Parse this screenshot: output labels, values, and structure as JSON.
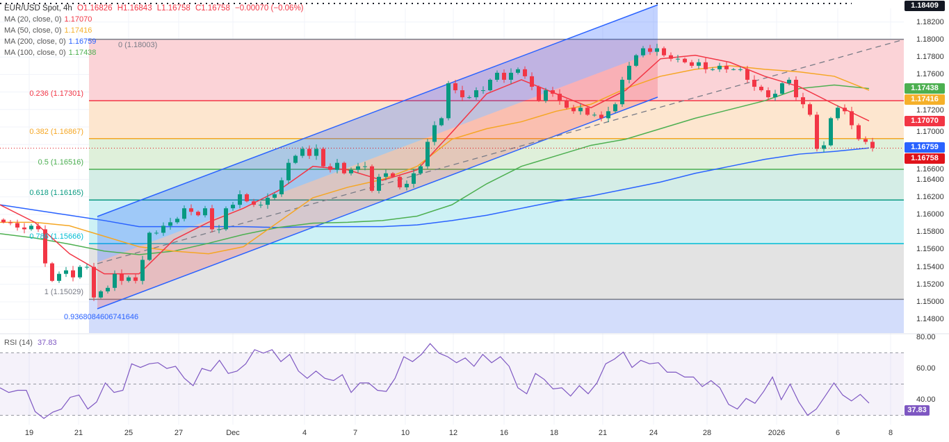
{
  "header": {
    "symbol": "EUR/USD Spot, 4h",
    "open": "O1.16826",
    "high": "H1.16843",
    "low": "L1.16758",
    "close": "C1.16758",
    "change": "−0.00070 (−0.06%)"
  },
  "indicators": [
    {
      "label": "MA (20, close, 0)",
      "value": "1.17070",
      "color": "#f23645"
    },
    {
      "label": "MA (50, close, 0)",
      "value": "1.17416",
      "color": "#f5b02a"
    },
    {
      "label": "MA (200, close, 0)",
      "value": "1.16759",
      "color": "#2962ff"
    },
    {
      "label": "MA (100, close, 0)",
      "value": "1.17438",
      "color": "#4caf50"
    }
  ],
  "rsi_legend": {
    "label": "RSI (14)",
    "value": "37.83"
  },
  "colors": {
    "up": "#089981",
    "down": "#f23645",
    "ma20": "#f23645",
    "ma50": "#f5a623",
    "ma100": "#4caf50",
    "ma200": "#2962ff",
    "rsi": "#7e57c2",
    "channel": "#2962ff"
  },
  "price_axis": {
    "ticks": [
      "1.18200",
      "1.18000",
      "1.17800",
      "1.17600",
      "1.17200",
      "1.17000",
      "1.16600",
      "1.16400",
      "1.16200",
      "1.16000",
      "1.15800",
      "1.15600",
      "1.15400",
      "1.15200",
      "1.15000",
      "1.14800"
    ]
  },
  "badges": [
    {
      "value": "1.18409",
      "color": "#131722",
      "name": "high-marker"
    },
    {
      "value": "1.17438",
      "color": "#4caf50",
      "name": "ma100"
    },
    {
      "value": "1.17416",
      "color": "#f5b02a",
      "name": "ma50"
    },
    {
      "value": "1.17070",
      "color": "#f23645",
      "name": "ma20"
    },
    {
      "value": "1.16759",
      "color": "#2962ff",
      "name": "ma200"
    },
    {
      "value": "1.16758",
      "color": "#e0131b",
      "name": "last-price"
    }
  ],
  "rsi_axis": {
    "ticks": [
      "80.00",
      "60.00",
      "40.00"
    ],
    "badge": "37.83"
  },
  "x_axis": {
    "ticks": [
      "19",
      "21",
      "25",
      "27",
      "Dec",
      "4",
      "7",
      "10",
      "12",
      "16",
      "18",
      "21",
      "24",
      "28",
      "2026",
      "6",
      "8"
    ]
  },
  "fib": [
    {
      "level": "0",
      "price": 1.18003,
      "label": "0 (1.18003)",
      "color": "#787b86",
      "fill": "#fbd3d7"
    },
    {
      "level": "0.236",
      "price": 1.17301,
      "label": "0.236 (1.17301)",
      "color": "#f23645",
      "fill": "#fde6cf"
    },
    {
      "level": "0.382",
      "price": 1.16867,
      "label": "0.382 (1.16867)",
      "color": "#f5a623",
      "fill": "#dff0da"
    },
    {
      "level": "0.5",
      "price": 1.16516,
      "label": "0.5 (1.16516)",
      "color": "#4caf50",
      "fill": "#d4ede6"
    },
    {
      "level": "0.618",
      "price": 1.16165,
      "label": "0.618 (1.16165)",
      "color": "#089981",
      "fill": "#cdf1f5"
    },
    {
      "level": "0.786",
      "price": 1.15666,
      "label": "0.786 (1.15666)",
      "color": "#00bcd4",
      "fill": "#e3e3e3"
    },
    {
      "level": "1",
      "price": 1.15029,
      "label": "1 (1.15029)",
      "color": "#787b86",
      "fill": "#d3ddfb"
    }
  ],
  "fib_extension_label": "0.9368084606741646",
  "chart_data": {
    "type": "candlestick",
    "title": "EUR/USD Spot, 4h",
    "ylim": [
      1.1475,
      1.1845
    ],
    "last_close": 1.16758,
    "period_high": 1.18409,
    "closes": [
      1.1591,
      1.159,
      1.1585,
      1.1583,
      1.1587,
      1.1583,
      1.1544,
      1.1524,
      1.1532,
      1.1536,
      1.1528,
      1.154,
      1.154,
      1.1505,
      1.1512,
      1.1516,
      1.1532,
      1.1524,
      1.1528,
      1.1524,
      1.1548,
      1.1579,
      1.1579,
      1.1587,
      1.1591,
      1.1595,
      1.1607,
      1.1603,
      1.1599,
      1.1607,
      1.1583,
      1.1583,
      1.1607,
      1.1611,
      1.1623,
      1.1615,
      1.1611,
      1.1611,
      1.1619,
      1.1623,
      1.1639,
      1.1659,
      1.1667,
      1.1675,
      1.1667,
      1.1675,
      1.1655,
      1.1651,
      1.1659,
      1.1647,
      1.1651,
      1.1655,
      1.1655,
      1.1627,
      1.1643,
      1.1647,
      1.1643,
      1.1631,
      1.1635,
      1.1647,
      1.1655,
      1.1683,
      1.1702,
      1.171,
      1.175,
      1.1742,
      1.1734,
      1.1734,
      1.1742,
      1.1742,
      1.1754,
      1.1762,
      1.1754,
      1.1762,
      1.1766,
      1.1758,
      1.1746,
      1.173,
      1.1742,
      1.1738,
      1.173,
      1.1722,
      1.1718,
      1.1722,
      1.1714,
      1.1714,
      1.171,
      1.1718,
      1.1726,
      1.1754,
      1.177,
      1.1782,
      1.179,
      1.1786,
      1.179,
      1.1782,
      1.1778,
      1.1778,
      1.1774,
      1.177,
      1.1774,
      1.1766,
      1.1766,
      1.177,
      1.1766,
      1.1766,
      1.1766,
      1.1754,
      1.1746,
      1.1742,
      1.1734,
      1.1738,
      1.175,
      1.1754,
      1.1734,
      1.1726,
      1.1714,
      1.1675,
      1.1679,
      1.171,
      1.1722,
      1.1718,
      1.1702,
      1.1686,
      1.1683,
      1.1676
    ],
    "ma20": [
      1.1611,
      1.1591,
      1.1555,
      1.1532,
      1.1532,
      1.1571,
      1.1591,
      1.1607,
      1.1627,
      1.1655,
      1.1651,
      1.1639,
      1.1651,
      1.1694,
      1.1738,
      1.1754,
      1.1738,
      1.1722,
      1.1742,
      1.1778,
      1.1782,
      1.1774,
      1.1758,
      1.1746,
      1.1726,
      1.1707
    ],
    "ma50": [
      1.1591,
      1.1591,
      1.1587,
      1.1575,
      1.1563,
      1.1558,
      1.1555,
      1.1563,
      1.1591,
      1.1619,
      1.1631,
      1.164,
      1.1655,
      1.1686,
      1.1698,
      1.1706,
      1.1718,
      1.1726,
      1.1744,
      1.1758,
      1.1766,
      1.177,
      1.1766,
      1.1763,
      1.1758,
      1.1742
    ],
    "ma100": [
      1.1578,
      1.1573,
      1.1566,
      1.1558,
      1.1554,
      1.1558,
      1.1567,
      1.1577,
      1.1585,
      1.159,
      1.1591,
      1.1593,
      1.1598,
      1.1611,
      1.1635,
      1.1655,
      1.1667,
      1.1679,
      1.1686,
      1.1698,
      1.171,
      1.172,
      1.173,
      1.1744,
      1.1748,
      1.1744
    ],
    "ma200": [
      1.1611,
      1.1605,
      1.1599,
      1.1593,
      1.1586,
      1.1586,
      1.1586,
      1.1586,
      1.1585,
      1.1586,
      1.1586,
      1.1586,
      1.1588,
      1.1593,
      1.1599,
      1.1607,
      1.1615,
      1.1621,
      1.1629,
      1.1637,
      1.1647,
      1.1655,
      1.1663,
      1.1669,
      1.1672,
      1.1676
    ],
    "rsi": {
      "period": 14,
      "ylim": [
        20,
        80
      ],
      "overbought": 70,
      "middle": 50,
      "oversold": 30,
      "values": [
        47.6,
        44.6,
        46,
        46,
        32.4,
        28,
        32,
        34,
        41.5,
        43,
        34,
        38.5,
        50.7,
        44.6,
        46,
        63,
        60.6,
        63,
        63.7,
        60,
        61.4,
        53.7,
        49,
        60,
        58.3,
        65.2,
        56.8,
        58.3,
        63,
        72,
        69.8,
        72,
        64.4,
        69,
        58.3,
        53.7,
        58.3,
        53.7,
        52.2,
        56,
        44.6,
        50.7,
        50.7,
        46,
        45.3,
        53.7,
        67.5,
        64.4,
        69,
        75.9,
        69.8,
        67.5,
        63.7,
        66.7,
        61.4,
        69,
        63.7,
        67.5,
        61.4,
        47.6,
        43.8,
        56.8,
        53,
        46.9,
        47.6,
        42.3,
        49,
        43.8,
        50.7,
        63,
        66,
        70.5,
        60.6,
        65.2,
        63,
        63.7,
        57.6,
        57.6,
        54.5,
        54.5,
        48.4,
        52.2,
        47.6,
        37,
        34,
        40.8,
        37.7,
        45.3,
        54.5,
        40,
        50,
        38.5,
        30,
        34,
        42.3,
        50.7,
        43,
        39.2,
        43.4,
        37.83
      ]
    }
  }
}
